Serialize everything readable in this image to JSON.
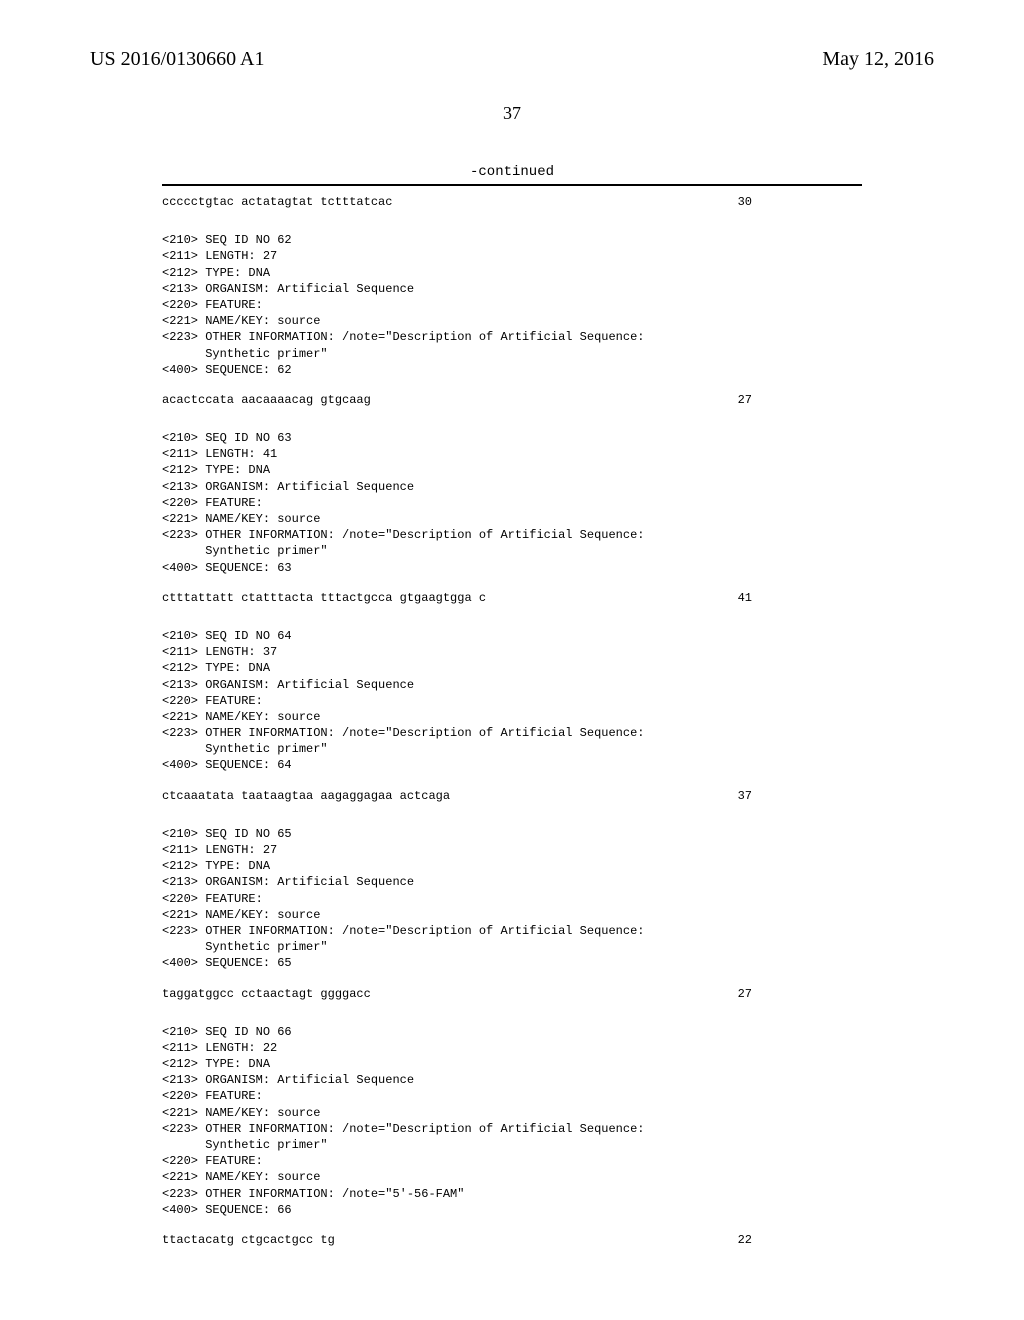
{
  "header": {
    "pub_number": "US 2016/0130660 A1",
    "pub_date": "May 12, 2016"
  },
  "page_number": "37",
  "continued": "-continued",
  "sequences": [
    {
      "header_lines": [],
      "seq_row": {
        "text": "ccccctgtac actatagtat tctttatcac",
        "num": "30"
      }
    },
    {
      "header_lines": [
        "<210> SEQ ID NO 62",
        "<211> LENGTH: 27",
        "<212> TYPE: DNA",
        "<213> ORGANISM: Artificial Sequence",
        "<220> FEATURE:",
        "<221> NAME/KEY: source",
        "<223> OTHER INFORMATION: /note=\"Description of Artificial Sequence:",
        "      Synthetic primer\"",
        "",
        "<400> SEQUENCE: 62"
      ],
      "seq_row": {
        "text": "acactccata aacaaaacag gtgcaag",
        "num": "27"
      }
    },
    {
      "header_lines": [
        "<210> SEQ ID NO 63",
        "<211> LENGTH: 41",
        "<212> TYPE: DNA",
        "<213> ORGANISM: Artificial Sequence",
        "<220> FEATURE:",
        "<221> NAME/KEY: source",
        "<223> OTHER INFORMATION: /note=\"Description of Artificial Sequence:",
        "      Synthetic primer\"",
        "",
        "<400> SEQUENCE: 63"
      ],
      "seq_row": {
        "text": "ctttattatt ctatttacta tttactgcca gtgaagtgga c",
        "num": "41"
      }
    },
    {
      "header_lines": [
        "<210> SEQ ID NO 64",
        "<211> LENGTH: 37",
        "<212> TYPE: DNA",
        "<213> ORGANISM: Artificial Sequence",
        "<220> FEATURE:",
        "<221> NAME/KEY: source",
        "<223> OTHER INFORMATION: /note=\"Description of Artificial Sequence:",
        "      Synthetic primer\"",
        "",
        "<400> SEQUENCE: 64"
      ],
      "seq_row": {
        "text": "ctcaaatata taataagtaa aagaggagaa actcaga",
        "num": "37"
      }
    },
    {
      "header_lines": [
        "<210> SEQ ID NO 65",
        "<211> LENGTH: 27",
        "<212> TYPE: DNA",
        "<213> ORGANISM: Artificial Sequence",
        "<220> FEATURE:",
        "<221> NAME/KEY: source",
        "<223> OTHER INFORMATION: /note=\"Description of Artificial Sequence:",
        "      Synthetic primer\"",
        "",
        "<400> SEQUENCE: 65"
      ],
      "seq_row": {
        "text": "taggatggcc cctaactagt ggggacc",
        "num": "27"
      }
    },
    {
      "header_lines": [
        "<210> SEQ ID NO 66",
        "<211> LENGTH: 22",
        "<212> TYPE: DNA",
        "<213> ORGANISM: Artificial Sequence",
        "<220> FEATURE:",
        "<221> NAME/KEY: source",
        "<223> OTHER INFORMATION: /note=\"Description of Artificial Sequence:",
        "      Synthetic primer\"",
        "<220> FEATURE:",
        "<221> NAME/KEY: source",
        "<223> OTHER INFORMATION: /note=\"5'-56-FAM\"",
        "",
        "<400> SEQUENCE: 66"
      ],
      "seq_row": {
        "text": "ttactacatg ctgcactgcc tg",
        "num": "22"
      }
    }
  ]
}
